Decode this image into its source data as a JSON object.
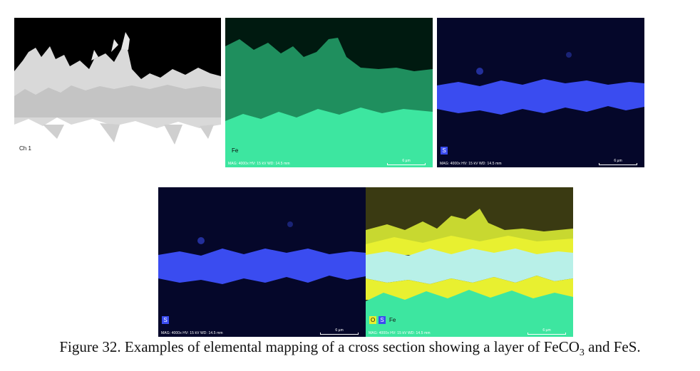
{
  "figure": {
    "caption_main": "Figure 32. Examples of elemental mapping of a cross section showing a layer of FeCO",
    "caption_sub": "3",
    "caption_tail": " and FeS."
  },
  "panels": {
    "electron_image": {
      "channel_label": "Ch 1"
    },
    "fe_map": {
      "element": "Fe",
      "info": "MAG: 4000x   HV: 15 kV   WD: 14.5 mm",
      "scale_label": "6 µm",
      "color": "#3de6a0"
    },
    "s_map_top": {
      "element": "S",
      "info": "MAG: 4000x   HV: 15 kV   WD: 14.5 mm",
      "scale_label": "6 µm",
      "color": "#3a4cf0"
    },
    "s_map_bottom": {
      "element": "S",
      "info": "MAG: 4000x   HV: 15 kV   WD: 14.5 mm",
      "scale_label": "6 µm",
      "color": "#3a4cf0"
    },
    "overlay_map": {
      "elements": [
        "O",
        "S",
        "Fe"
      ],
      "info": "MAG: 4000x   HV: 15 kV   WD: 14.5 mm",
      "scale_label": "6 µm",
      "colors": {
        "O": "#e8f030",
        "S": "#3a4cf0",
        "Fe": "#3de6a0"
      }
    }
  }
}
